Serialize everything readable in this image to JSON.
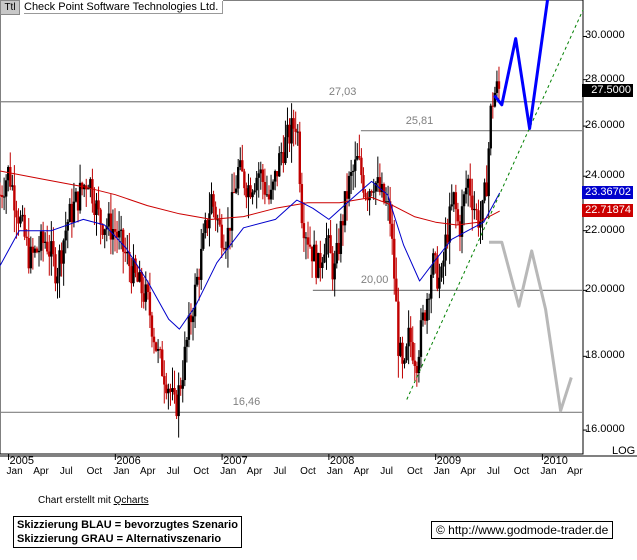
{
  "header": {
    "ticker": "Ttl",
    "name": "Check Point Software Technologies Ltd."
  },
  "colors": {
    "bull": "#000000",
    "bear": "#c00000",
    "ma_red": "#cc0000",
    "ma_blue": "#0000cc",
    "blue_scenario": "#0000ff",
    "grey_scenario": "#b8b8b8",
    "trend": "#008000",
    "level": "#808080"
  },
  "chart_data": {
    "type": "candlestick",
    "scale": "log",
    "title": "Check Point Software Technologies Ltd.",
    "y_ticks": [
      "16.0000",
      "18.0000",
      "20.0000",
      "22.0000",
      "24.0000",
      "26.0000",
      "28.0000",
      "30.0000"
    ],
    "y_tick_values": [
      16,
      18,
      20,
      22,
      24,
      26,
      28,
      30
    ],
    "ylim": [
      15.4,
      31.8
    ],
    "x_range": [
      2004.92,
      2010.38
    ],
    "price_badges": [
      {
        "label": "27.5000",
        "value": 27.5,
        "color": "#000000"
      },
      {
        "label": "23.36702",
        "value": 23.367,
        "color": "#0000cc"
      },
      {
        "label": "22.71874",
        "value": 22.719,
        "color": "#cc0000"
      }
    ],
    "levels": [
      {
        "label": "27,03",
        "value": 27.03,
        "x_start": 2004.92,
        "x_end": 2010.38,
        "label_x": 2008.0
      },
      {
        "label": "25,81",
        "value": 25.81,
        "x_start": 2008.3,
        "x_end": 2010.38,
        "label_x": 2008.72
      },
      {
        "label": "20,00",
        "value": 20.0,
        "x_start": 2007.85,
        "x_end": 2010.38,
        "label_x": 2008.3
      },
      {
        "label": "16,46",
        "value": 16.46,
        "x_start": 2004.92,
        "x_end": 2010.38,
        "label_x": 2007.1
      }
    ],
    "trendline": {
      "from": [
        2008.73,
        16.8
      ],
      "to": [
        2010.38,
        31.3
      ]
    },
    "years": [
      {
        "label": "2005",
        "x": 2005.0
      },
      {
        "label": "2006",
        "x": 2006.0
      },
      {
        "label": "2007",
        "x": 2007.0
      },
      {
        "label": "2008",
        "x": 2008.0
      },
      {
        "label": "2009",
        "x": 2009.0
      },
      {
        "label": "2010",
        "x": 2010.0
      }
    ],
    "months": [
      {
        "label": "Jan",
        "x": 2005.0
      },
      {
        "label": "Apr",
        "x": 2005.25
      },
      {
        "label": "Jul",
        "x": 2005.5
      },
      {
        "label": "Oct",
        "x": 2005.75
      },
      {
        "label": "Jan",
        "x": 2006.0
      },
      {
        "label": "Apr",
        "x": 2006.25
      },
      {
        "label": "Jul",
        "x": 2006.5
      },
      {
        "label": "Oct",
        "x": 2006.75
      },
      {
        "label": "Jan",
        "x": 2007.0
      },
      {
        "label": "Apr",
        "x": 2007.25
      },
      {
        "label": "Jul",
        "x": 2007.5
      },
      {
        "label": "Oct",
        "x": 2007.75
      },
      {
        "label": "Jan",
        "x": 2008.0
      },
      {
        "label": "Apr",
        "x": 2008.25
      },
      {
        "label": "Jul",
        "x": 2008.5
      },
      {
        "label": "Oct",
        "x": 2008.75
      },
      {
        "label": "Jan",
        "x": 2009.0
      },
      {
        "label": "Apr",
        "x": 2009.25
      },
      {
        "label": "Jul",
        "x": 2009.5
      },
      {
        "label": "Oct",
        "x": 2009.75
      },
      {
        "label": "Jan",
        "x": 2010.0
      },
      {
        "label": "Apr",
        "x": 2010.25
      }
    ],
    "price_anchors": [
      [
        2004.92,
        23.3
      ],
      [
        2005.0,
        24.2
      ],
      [
        2005.08,
        22.8
      ],
      [
        2005.2,
        21.0
      ],
      [
        2005.35,
        21.7
      ],
      [
        2005.45,
        20.6
      ],
      [
        2005.55,
        22.3
      ],
      [
        2005.65,
        23.2
      ],
      [
        2005.75,
        24.0
      ],
      [
        2005.85,
        22.4
      ],
      [
        2006.0,
        22.0
      ],
      [
        2006.1,
        21.1
      ],
      [
        2006.2,
        20.3
      ],
      [
        2006.3,
        19.7
      ],
      [
        2006.4,
        18.0
      ],
      [
        2006.5,
        17.2
      ],
      [
        2006.56,
        16.5
      ],
      [
        2006.62,
        17.4
      ],
      [
        2006.7,
        19.0
      ],
      [
        2006.8,
        21.0
      ],
      [
        2006.9,
        23.2
      ],
      [
        2006.98,
        22.0
      ],
      [
        2007.05,
        21.8
      ],
      [
        2007.15,
        24.2
      ],
      [
        2007.25,
        23.6
      ],
      [
        2007.35,
        24.2
      ],
      [
        2007.45,
        23.0
      ],
      [
        2007.55,
        24.9
      ],
      [
        2007.65,
        25.8
      ],
      [
        2007.7,
        26.3
      ],
      [
        2007.75,
        22.5
      ],
      [
        2007.82,
        21.6
      ],
      [
        2007.9,
        20.7
      ],
      [
        2007.97,
        21.8
      ],
      [
        2008.05,
        20.5
      ],
      [
        2008.12,
        22.2
      ],
      [
        2008.18,
        23.6
      ],
      [
        2008.27,
        24.6
      ],
      [
        2008.35,
        23.4
      ],
      [
        2008.42,
        23.9
      ],
      [
        2008.5,
        23.2
      ],
      [
        2008.57,
        22.6
      ],
      [
        2008.62,
        20.1
      ],
      [
        2008.65,
        18.4
      ],
      [
        2008.7,
        17.3
      ],
      [
        2008.75,
        18.6
      ],
      [
        2008.82,
        17.9
      ],
      [
        2008.9,
        19.4
      ],
      [
        2008.97,
        20.9
      ],
      [
        2009.05,
        20.2
      ],
      [
        2009.1,
        21.8
      ],
      [
        2009.17,
        23.1
      ],
      [
        2009.22,
        22.0
      ],
      [
        2009.3,
        23.9
      ],
      [
        2009.38,
        22.6
      ],
      [
        2009.43,
        22.3
      ],
      [
        2009.48,
        23.9
      ],
      [
        2009.52,
        26.8
      ],
      [
        2009.55,
        27.4
      ],
      [
        2009.58,
        27.6
      ],
      [
        2009.6,
        27.5
      ]
    ],
    "ma_red": [
      [
        2004.92,
        24.2
      ],
      [
        2005.3,
        23.9
      ],
      [
        2005.7,
        23.6
      ],
      [
        2006.0,
        23.3
      ],
      [
        2006.3,
        22.9
      ],
      [
        2006.6,
        22.6
      ],
      [
        2006.9,
        22.4
      ],
      [
        2007.2,
        22.5
      ],
      [
        2007.5,
        22.8
      ],
      [
        2007.8,
        23.0
      ],
      [
        2008.1,
        23.0
      ],
      [
        2008.4,
        23.2
      ],
      [
        2008.6,
        22.9
      ],
      [
        2008.8,
        22.5
      ],
      [
        2009.0,
        22.3
      ],
      [
        2009.2,
        22.2
      ],
      [
        2009.4,
        22.3
      ],
      [
        2009.6,
        22.7
      ]
    ],
    "ma_blue": [
      [
        2004.92,
        20.8
      ],
      [
        2005.1,
        22.0
      ],
      [
        2005.4,
        22.0
      ],
      [
        2005.7,
        22.4
      ],
      [
        2005.9,
        22.2
      ],
      [
        2006.1,
        21.4
      ],
      [
        2006.3,
        20.3
      ],
      [
        2006.5,
        19.1
      ],
      [
        2006.6,
        18.8
      ],
      [
        2006.75,
        19.5
      ],
      [
        2006.95,
        20.9
      ],
      [
        2007.2,
        22.1
      ],
      [
        2007.5,
        22.4
      ],
      [
        2007.7,
        23.1
      ],
      [
        2007.85,
        22.8
      ],
      [
        2008.0,
        22.4
      ],
      [
        2008.2,
        23.1
      ],
      [
        2008.4,
        23.8
      ],
      [
        2008.55,
        23.3
      ],
      [
        2008.7,
        21.5
      ],
      [
        2008.85,
        20.3
      ],
      [
        2009.0,
        21.0
      ],
      [
        2009.15,
        21.7
      ],
      [
        2009.3,
        22.0
      ],
      [
        2009.45,
        22.3
      ],
      [
        2009.6,
        23.37
      ]
    ],
    "blue_scenario": [
      [
        2009.55,
        27.3
      ],
      [
        2009.62,
        26.9
      ],
      [
        2009.75,
        29.9
      ],
      [
        2009.88,
        25.9
      ],
      [
        2010.05,
        31.9
      ]
    ],
    "grey_scenario": [
      [
        2009.5,
        21.6
      ],
      [
        2009.62,
        21.6
      ],
      [
        2009.78,
        19.5
      ],
      [
        2009.9,
        21.3
      ],
      [
        2010.03,
        19.4
      ],
      [
        2010.17,
        16.5
      ],
      [
        2010.27,
        17.4
      ]
    ]
  },
  "labels": {
    "log": "LOG",
    "credit_prefix": "Chart erstellt mit ",
    "credit_brand": "Qcharts",
    "legend_blue": "Skizzierung BLAU = bevorzugtes Szenario",
    "legend_grey": "Skizzierung GRAU = Alternativszenario",
    "site": "© http://www.godmode-trader.de"
  }
}
